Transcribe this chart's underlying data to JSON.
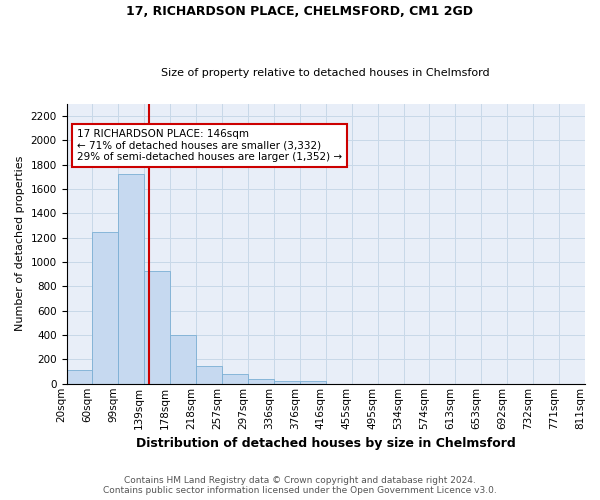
{
  "title": "17, RICHARDSON PLACE, CHELMSFORD, CM1 2GD",
  "subtitle": "Size of property relative to detached houses in Chelmsford",
  "xlabel": "Distribution of detached houses by size in Chelmsford",
  "ylabel": "Number of detached properties",
  "footer_line1": "Contains HM Land Registry data © Crown copyright and database right 2024.",
  "footer_line2": "Contains public sector information licensed under the Open Government Licence v3.0.",
  "bin_labels": [
    "20sqm",
    "60sqm",
    "99sqm",
    "139sqm",
    "178sqm",
    "218sqm",
    "257sqm",
    "297sqm",
    "336sqm",
    "376sqm",
    "416sqm",
    "455sqm",
    "495sqm",
    "534sqm",
    "574sqm",
    "613sqm",
    "653sqm",
    "692sqm",
    "732sqm",
    "771sqm",
    "811sqm"
  ],
  "values": [
    110,
    1250,
    1720,
    930,
    400,
    150,
    80,
    40,
    25,
    20,
    0,
    0,
    0,
    0,
    0,
    0,
    0,
    0,
    0,
    0
  ],
  "bar_color": "#c6d9f0",
  "bar_edge_color": "#7bafd4",
  "property_line_bin": 3.18,
  "property_line_color": "#cc0000",
  "annotation_text": "17 RICHARDSON PLACE: 146sqm\n← 71% of detached houses are smaller (3,332)\n29% of semi-detached houses are larger (1,352) →",
  "annotation_box_color": "#cc0000",
  "ylim": [
    0,
    2300
  ],
  "yticks": [
    0,
    200,
    400,
    600,
    800,
    1000,
    1200,
    1400,
    1600,
    1800,
    2000,
    2200
  ],
  "grid_color": "#c8d8e8",
  "background_color": "#e8eef8",
  "title_fontsize": 9,
  "subtitle_fontsize": 8,
  "ylabel_fontsize": 8,
  "xlabel_fontsize": 9,
  "tick_fontsize": 7.5,
  "footer_fontsize": 6.5
}
